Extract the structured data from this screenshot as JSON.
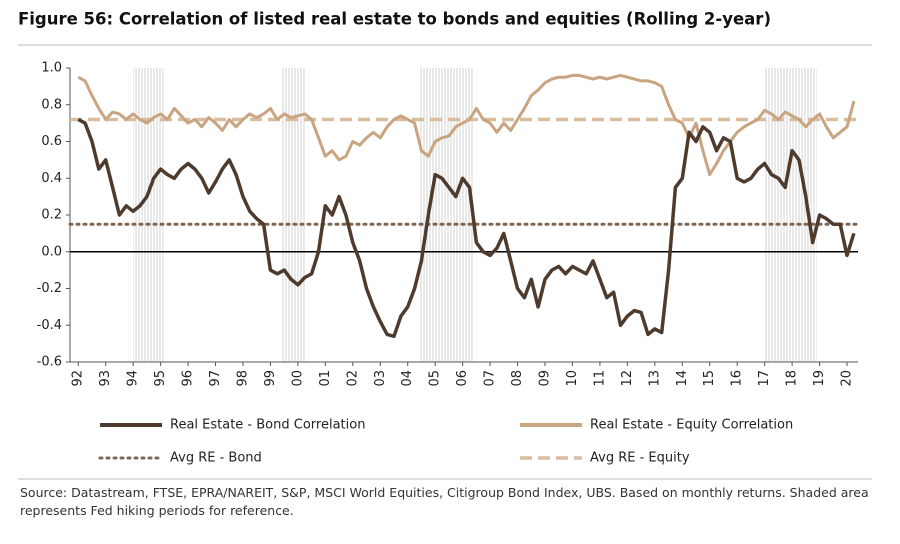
{
  "chart_data": {
    "type": "line",
    "title": "Figure 56: Correlation of listed real estate to bonds and equities (Rolling 2-year)",
    "source": "Source: Datastream, FTSE, EPRA/NAREIT, S&P, MSCI World Equities, Citigroup Bond Index, UBS. Based on monthly returns. Shaded area represents Fed hiking periods for reference.",
    "xlim": [
      1991.7,
      2020.4
    ],
    "ylim": [
      -0.6,
      1.0
    ],
    "yticks": [
      {
        "value": 1,
        "label": "1.0"
      },
      0.8,
      0.6,
      0.4,
      0.2,
      {
        "value": 0,
        "label": "0.0"
      },
      -0.2,
      -0.4,
      -0.6
    ],
    "xticks": [
      {
        "value": 1992,
        "label": "92"
      },
      {
        "value": 1993,
        "label": "93"
      },
      {
        "value": 1994,
        "label": "94"
      },
      {
        "value": 1995,
        "label": "95"
      },
      {
        "value": 1996,
        "label": "96"
      },
      {
        "value": 1997,
        "label": "97"
      },
      {
        "value": 1998,
        "label": "98"
      },
      {
        "value": 1999,
        "label": "99"
      },
      {
        "value": 2000,
        "label": "00"
      },
      {
        "value": 2001,
        "label": "01"
      },
      {
        "value": 2002,
        "label": "02"
      },
      {
        "value": 2003,
        "label": "03"
      },
      {
        "value": 2004,
        "label": "04"
      },
      {
        "value": 2005,
        "label": "05"
      },
      {
        "value": 2006,
        "label": "06"
      },
      {
        "value": 2007,
        "label": "07"
      },
      {
        "value": 2008,
        "label": "08"
      },
      {
        "value": 2009,
        "label": "09"
      },
      {
        "value": 2010,
        "label": "10"
      },
      {
        "value": 2011,
        "label": "11"
      },
      {
        "value": 2012,
        "label": "12"
      },
      {
        "value": 2013,
        "label": "13"
      },
      {
        "value": 2014,
        "label": "14"
      },
      {
        "value": 2015,
        "label": "15"
      },
      {
        "value": 2016,
        "label": "16"
      },
      {
        "value": 2017,
        "label": "17"
      },
      {
        "value": 2018,
        "label": "18"
      },
      {
        "value": 2019,
        "label": "19"
      },
      {
        "value": 2020,
        "label": "20"
      }
    ],
    "shaded_periods": [
      [
        1994,
        1995.1
      ],
      [
        1999.4,
        2000.3
      ],
      [
        2004.4,
        2006.4
      ],
      [
        2017,
        2018.9
      ]
    ],
    "x": [
      1992,
      1992.25,
      1992.5,
      1992.75,
      1993,
      1993.25,
      1993.5,
      1993.75,
      1994,
      1994.25,
      1994.5,
      1994.75,
      1995,
      1995.25,
      1995.5,
      1995.75,
      1996,
      1996.25,
      1996.5,
      1996.75,
      1997,
      1997.25,
      1997.5,
      1997.75,
      1998,
      1998.25,
      1998.5,
      1998.75,
      1999,
      1999.25,
      1999.5,
      1999.75,
      2000,
      2000.25,
      2000.5,
      2000.75,
      2001,
      2001.25,
      2001.5,
      2001.75,
      2002,
      2002.25,
      2002.5,
      2002.75,
      2003,
      2003.25,
      2003.5,
      2003.75,
      2004,
      2004.25,
      2004.5,
      2004.75,
      2005,
      2005.25,
      2005.5,
      2005.75,
      2006,
      2006.25,
      2006.5,
      2006.75,
      2007,
      2007.25,
      2007.5,
      2007.75,
      2008,
      2008.25,
      2008.5,
      2008.75,
      2009,
      2009.25,
      2009.5,
      2009.75,
      2010,
      2010.25,
      2010.5,
      2010.75,
      2011,
      2011.25,
      2011.5,
      2011.75,
      2012,
      2012.25,
      2012.5,
      2012.75,
      2013,
      2013.25,
      2013.5,
      2013.75,
      2014,
      2014.25,
      2014.5,
      2014.75,
      2015,
      2015.25,
      2015.5,
      2015.75,
      2016,
      2016.25,
      2016.5,
      2016.75,
      2017,
      2017.25,
      2017.5,
      2017.75,
      2018,
      2018.25,
      2018.5,
      2018.75,
      2019,
      2019.25,
      2019.5,
      2019.75,
      2020,
      2020.25
    ],
    "series": [
      {
        "name": "Real Estate - Bond Correlation",
        "color": "#4e3b2d",
        "values": [
          0.72,
          0.7,
          0.6,
          0.45,
          0.5,
          0.35,
          0.2,
          0.25,
          0.22,
          0.25,
          0.3,
          0.4,
          0.45,
          0.42,
          0.4,
          0.45,
          0.48,
          0.45,
          0.4,
          0.32,
          0.38,
          0.45,
          0.5,
          0.42,
          0.3,
          0.22,
          0.18,
          0.15,
          -0.1,
          -0.12,
          -0.1,
          -0.15,
          -0.18,
          -0.14,
          -0.12,
          0.0,
          0.25,
          0.2,
          0.3,
          0.2,
          0.05,
          -0.05,
          -0.2,
          -0.3,
          -0.38,
          -0.45,
          -0.46,
          -0.35,
          -0.3,
          -0.2,
          -0.05,
          0.2,
          0.42,
          0.4,
          0.35,
          0.3,
          0.4,
          0.35,
          0.05,
          0.0,
          -0.02,
          0.02,
          0.1,
          -0.05,
          -0.2,
          -0.25,
          -0.15,
          -0.3,
          -0.15,
          -0.1,
          -0.08,
          -0.12,
          -0.08,
          -0.1,
          -0.12,
          -0.05,
          -0.15,
          -0.25,
          -0.22,
          -0.4,
          -0.35,
          -0.32,
          -0.33,
          -0.45,
          -0.42,
          -0.44,
          -0.1,
          0.35,
          0.4,
          0.65,
          0.6,
          0.68,
          0.65,
          0.55,
          0.62,
          0.6,
          0.4,
          0.38,
          0.4,
          0.45,
          0.48,
          0.42,
          0.4,
          0.35,
          0.55,
          0.5,
          0.3,
          0.05,
          0.2,
          0.18,
          0.15,
          0.15,
          -0.02,
          0.1
        ]
      },
      {
        "name": "Real Estate - Equity Correlation",
        "color": "#c9a481",
        "values": [
          0.95,
          0.93,
          0.85,
          0.78,
          0.72,
          0.76,
          0.75,
          0.72,
          0.75,
          0.72,
          0.7,
          0.73,
          0.75,
          0.72,
          0.78,
          0.74,
          0.7,
          0.72,
          0.68,
          0.73,
          0.7,
          0.66,
          0.72,
          0.68,
          0.72,
          0.75,
          0.73,
          0.75,
          0.78,
          0.72,
          0.75,
          0.73,
          0.74,
          0.75,
          0.72,
          0.62,
          0.52,
          0.55,
          0.5,
          0.52,
          0.6,
          0.58,
          0.62,
          0.65,
          0.62,
          0.68,
          0.72,
          0.74,
          0.72,
          0.7,
          0.55,
          0.52,
          0.6,
          0.62,
          0.63,
          0.68,
          0.7,
          0.72,
          0.78,
          0.72,
          0.7,
          0.65,
          0.7,
          0.66,
          0.72,
          0.78,
          0.85,
          0.88,
          0.92,
          0.94,
          0.95,
          0.95,
          0.96,
          0.96,
          0.95,
          0.94,
          0.95,
          0.94,
          0.95,
          0.96,
          0.95,
          0.94,
          0.93,
          0.93,
          0.92,
          0.9,
          0.8,
          0.72,
          0.7,
          0.62,
          0.7,
          0.55,
          0.42,
          0.48,
          0.55,
          0.6,
          0.65,
          0.68,
          0.7,
          0.72,
          0.77,
          0.75,
          0.72,
          0.76,
          0.74,
          0.72,
          0.68,
          0.72,
          0.75,
          0.68,
          0.62,
          0.65,
          0.68,
          0.82
        ]
      }
    ],
    "reference_lines": [
      {
        "name": "Avg RE - Bond",
        "value": 0.15,
        "color": "#7d6654",
        "style": "dotted"
      },
      {
        "name": "Avg RE - Equity",
        "value": 0.72,
        "color": "#d8bd9f",
        "style": "dashed"
      }
    ]
  }
}
